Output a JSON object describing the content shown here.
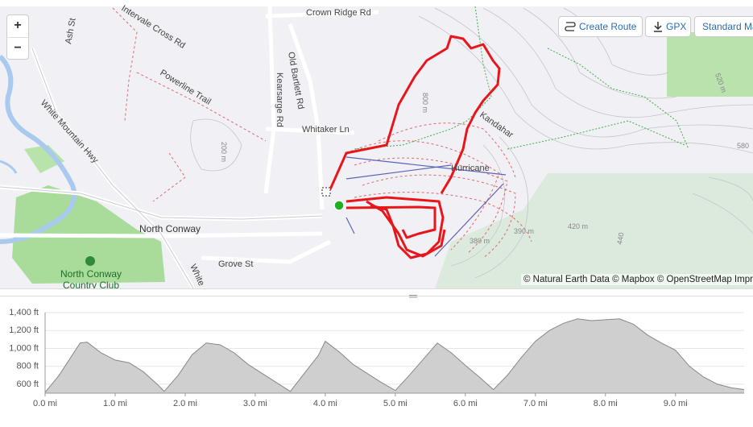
{
  "map": {
    "zoom_in": "+",
    "zoom_out": "−",
    "buttons": [
      "Create Route",
      "GPX",
      "Standard Map"
    ],
    "labels": [
      "Crown Ridge Rd",
      "Intervale Cross Rd",
      "Ash St",
      "Powerline Trail",
      "Old Bartlett Rd",
      "Kearsarge Rd",
      "Whitaker Ln",
      "White Mountain Hwy",
      "North Conway",
      "North Conway",
      "Country Club",
      "Grove St",
      "White",
      "Kandahar",
      "Hurricane",
      "800 m",
      "200 m",
      "520 m",
      "580",
      "420 m",
      "440",
      "390 m",
      "380 m"
    ],
    "attribution": "© Natural Earth Data © Mapbox © OpenStreetMap Improve this map"
  },
  "chart_data": {
    "type": "area",
    "x": [
      0,
      0.2,
      0.5,
      0.6,
      0.8,
      1.0,
      1.2,
      1.4,
      1.6,
      1.7,
      1.9,
      2.1,
      2.3,
      2.5,
      2.7,
      2.9,
      3.1,
      3.3,
      3.5,
      3.7,
      3.9,
      4.0,
      4.2,
      4.4,
      4.6,
      4.8,
      5.0,
      5.2,
      5.4,
      5.6,
      5.8,
      6.0,
      6.2,
      6.4,
      6.6,
      6.8,
      7.0,
      7.2,
      7.4,
      7.6,
      7.8,
      8.0,
      8.2,
      8.4,
      8.6,
      8.8,
      9.0,
      9.2,
      9.4,
      9.6,
      9.8,
      9.98
    ],
    "series": [
      {
        "color": "#888888",
        "values": [
          510,
          700,
          1060,
          1070,
          950,
          870,
          840,
          740,
          600,
          520,
          700,
          930,
          1060,
          1040,
          950,
          820,
          720,
          620,
          520,
          720,
          920,
          1080,
          960,
          820,
          720,
          620,
          530,
          700,
          880,
          1060,
          950,
          810,
          680,
          540,
          700,
          900,
          1080,
          1200,
          1280,
          1330,
          1310,
          1320,
          1330,
          1270,
          1150,
          1060,
          980,
          800,
          680,
          600,
          560,
          540
        ]
      }
    ],
    "xlim": [
      0,
      9.98
    ],
    "ylim": [
      500,
      1400
    ],
    "xticks": [
      {
        "value": 0,
        "label": "0.0 mi"
      },
      {
        "value": 1,
        "label": "1.0 mi"
      },
      {
        "value": 2,
        "label": "2.0 mi"
      },
      {
        "value": 3,
        "label": "3.0 mi"
      },
      {
        "value": 4,
        "label": "4.0 mi"
      },
      {
        "value": 5,
        "label": "5.0 mi"
      },
      {
        "value": 6,
        "label": "6.0 mi"
      },
      {
        "value": 7,
        "label": "7.0 mi"
      },
      {
        "value": 8,
        "label": "8.0 mi"
      },
      {
        "value": 9,
        "label": "9.0 mi"
      }
    ],
    "yticks": [
      {
        "value": 600,
        "label": "600 ft"
      },
      {
        "value": 800,
        "label": "800 ft"
      },
      {
        "value": 1000,
        "label": "1,000 ft"
      },
      {
        "value": 1200,
        "label": "1,200 ft"
      },
      {
        "value": 1400,
        "label": "1,400 ft"
      }
    ],
    "grid": true
  }
}
